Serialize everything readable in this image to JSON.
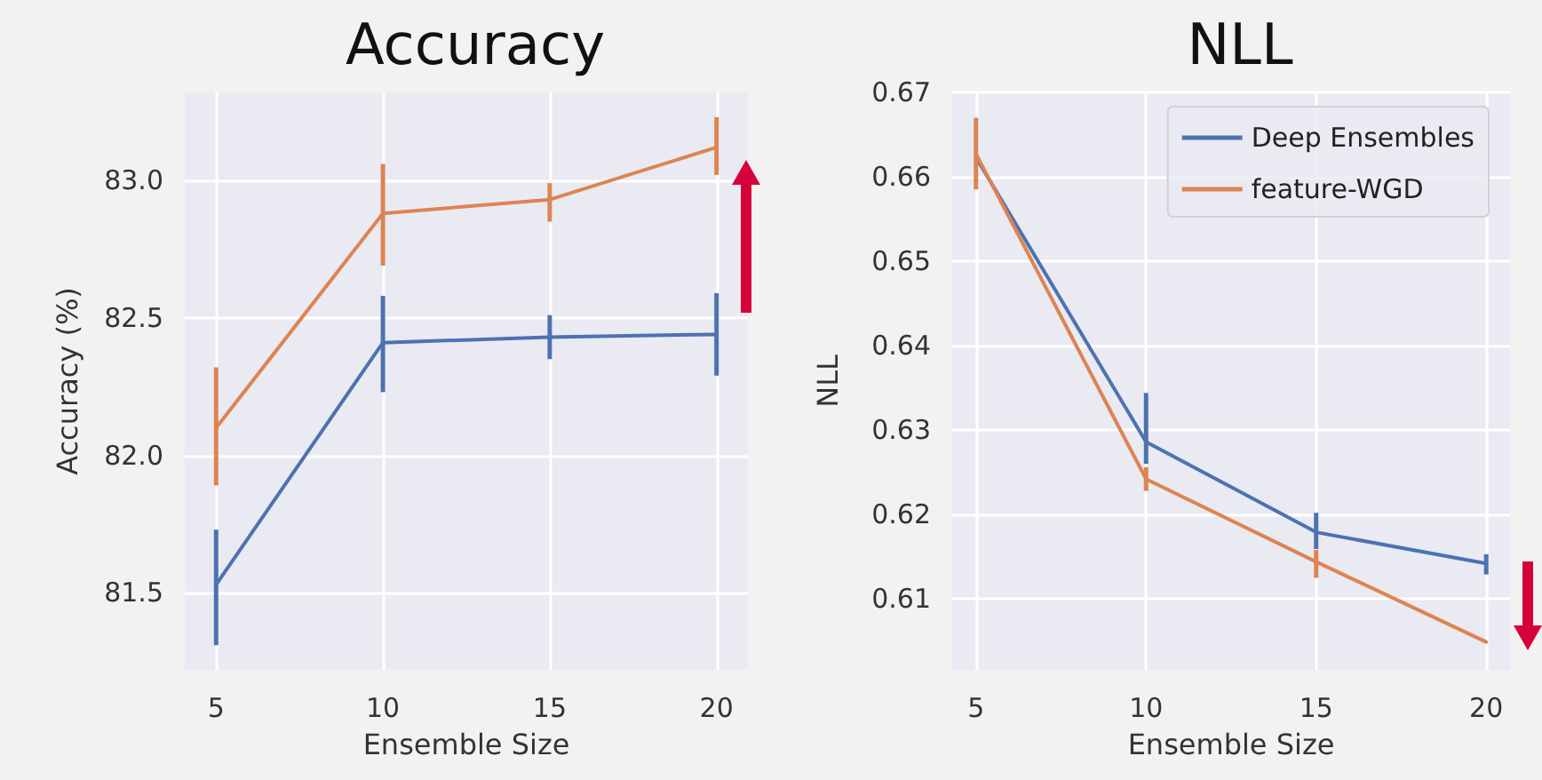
{
  "chart_data": [
    {
      "type": "line",
      "title": "Accuracy",
      "xlabel": "Ensemble Size",
      "ylabel": "Accuracy (%)",
      "x": [
        5,
        10,
        15,
        20
      ],
      "xlim": [
        4.06,
        20.94
      ],
      "xticks": [
        5,
        10,
        15,
        20
      ],
      "ylim": [
        81.22,
        83.32
      ],
      "yticks": [
        {
          "value": 81.5,
          "label": "81.5"
        },
        {
          "value": 82,
          "label": "82.0"
        },
        {
          "value": 82.5,
          "label": "82.5"
        },
        {
          "value": 83,
          "label": "83.0"
        }
      ],
      "grid": true,
      "legend": false,
      "marker": "none",
      "line_style": "solid",
      "series": [
        {
          "color": "#4c72b0",
          "values": [
            81.53,
            82.41,
            82.43,
            82.44
          ],
          "errors": [
            [
              81.31,
              81.73
            ],
            [
              82.23,
              82.58
            ],
            [
              82.35,
              82.51
            ],
            [
              82.29,
              82.59
            ]
          ]
        },
        {
          "color": "#dd8452",
          "values": [
            82.1,
            82.88,
            82.93,
            83.12
          ],
          "errors": [
            [
              81.89,
              82.32
            ],
            [
              82.69,
              83.06
            ],
            [
              82.85,
              82.99
            ],
            [
              83.02,
              83.23
            ]
          ]
        }
      ]
    },
    {
      "type": "line",
      "title": "NLL",
      "xlabel": "Ensemble Size",
      "ylabel": "NLL",
      "x": [
        5,
        10,
        15,
        20
      ],
      "xlim": [
        4.3,
        20.7
      ],
      "xticks": [
        5,
        10,
        15,
        20
      ],
      "ylim": [
        0.6016,
        0.67
      ],
      "yticks": [
        0.61,
        0.62,
        0.63,
        0.64,
        0.65,
        0.66,
        0.67
      ],
      "grid": true,
      "legend": "top right",
      "marker": "none",
      "line_style": "solid",
      "series": [
        {
          "name": "Deep Ensembles",
          "color": "#4c72b0",
          "values": [
            0.6623,
            0.6286,
            0.6179,
            0.6142
          ],
          "errors": [
            null,
            [
              0.626,
              0.6344
            ],
            [
              0.6159,
              0.6202
            ],
            [
              0.6129,
              0.6153
            ]
          ]
        },
        {
          "name": "feature-WGD",
          "color": "#dd8452",
          "values": [
            0.6627,
            0.6242,
            0.6144,
            0.6049
          ],
          "errors": [
            [
              0.6585,
              0.667
            ],
            [
              0.6228,
              0.6256
            ],
            [
              0.6125,
              0.6158
            ],
            null
          ]
        }
      ]
    }
  ]
}
